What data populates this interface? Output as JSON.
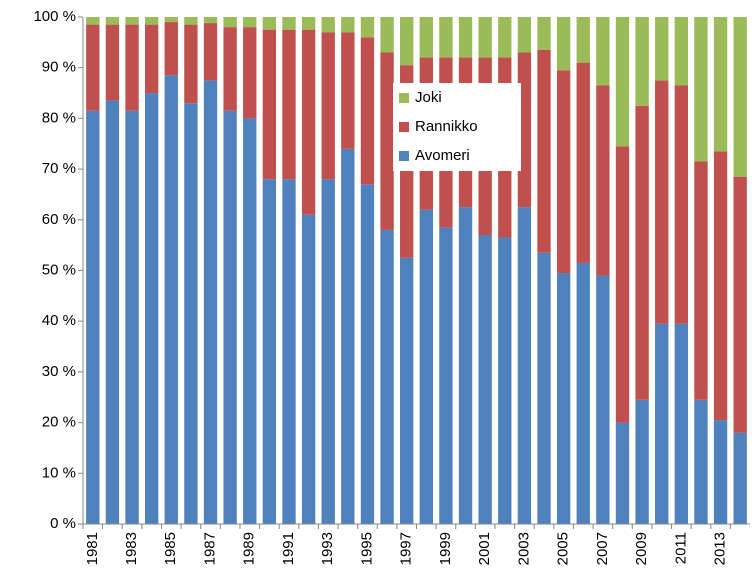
{
  "chart_data": {
    "type": "stacked_bar",
    "categories": [
      "1981",
      null,
      "1983",
      null,
      "1985",
      null,
      "1987",
      null,
      "1989",
      null,
      "1991",
      null,
      "1993",
      null,
      "1995",
      null,
      "1997",
      null,
      "1999",
      null,
      "2001",
      null,
      "2003",
      null,
      "2005",
      null,
      "2007",
      null,
      "2009",
      null,
      "2011",
      null,
      "2013",
      null
    ],
    "series": [
      {
        "name": "Avomeri",
        "color": "#4f81bd",
        "values": [
          81.5,
          83.5,
          81.5,
          85,
          88.5,
          83,
          87.5,
          81.5,
          80,
          68,
          68,
          61,
          68,
          74,
          67,
          58,
          52.5,
          62,
          58.5,
          62.5,
          57,
          56.5,
          62.5,
          53.5,
          49.5,
          51.5,
          49,
          20,
          24.5,
          39.5,
          39.5,
          24.5,
          20.5,
          18
        ]
      },
      {
        "name": "Rannikko",
        "color": "#c0504d",
        "values": [
          17,
          15,
          17,
          13.5,
          10.5,
          15.5,
          11.3,
          16.5,
          18,
          29.5,
          29.5,
          36.5,
          29,
          23,
          29,
          35,
          38,
          30,
          33.5,
          29.5,
          35,
          35.5,
          30.5,
          40,
          40,
          39.5,
          37.5,
          54.5,
          58,
          48,
          47,
          47,
          53,
          50.5
        ]
      },
      {
        "name": "Joki",
        "color": "#9bbb59",
        "values": [
          1.5,
          1.5,
          1.5,
          1.5,
          1,
          1.5,
          1.2,
          2,
          2,
          2.5,
          2.5,
          2.5,
          3,
          3,
          4,
          7,
          9.5,
          8,
          8,
          8,
          8,
          8,
          7,
          6.5,
          10.5,
          9,
          13.5,
          25.5,
          17.5,
          12.5,
          13.5,
          28.5,
          26.5,
          31.5
        ]
      }
    ],
    "ylim": [
      0,
      100
    ],
    "yticks": [
      {
        "value": 0,
        "label": "0 %"
      },
      {
        "value": 10,
        "label": "10 %"
      },
      {
        "value": 20,
        "label": "20 %"
      },
      {
        "value": 30,
        "label": "30 %"
      },
      {
        "value": 40,
        "label": "40 %"
      },
      {
        "value": 50,
        "label": "50 %"
      },
      {
        "value": 60,
        "label": "60 %"
      },
      {
        "value": 70,
        "label": "70 %"
      },
      {
        "value": 80,
        "label": "80 %"
      },
      {
        "value": 90,
        "label": "90 %"
      },
      {
        "value": 100,
        "label": "100 %"
      }
    ],
    "legend": "upper-center"
  }
}
